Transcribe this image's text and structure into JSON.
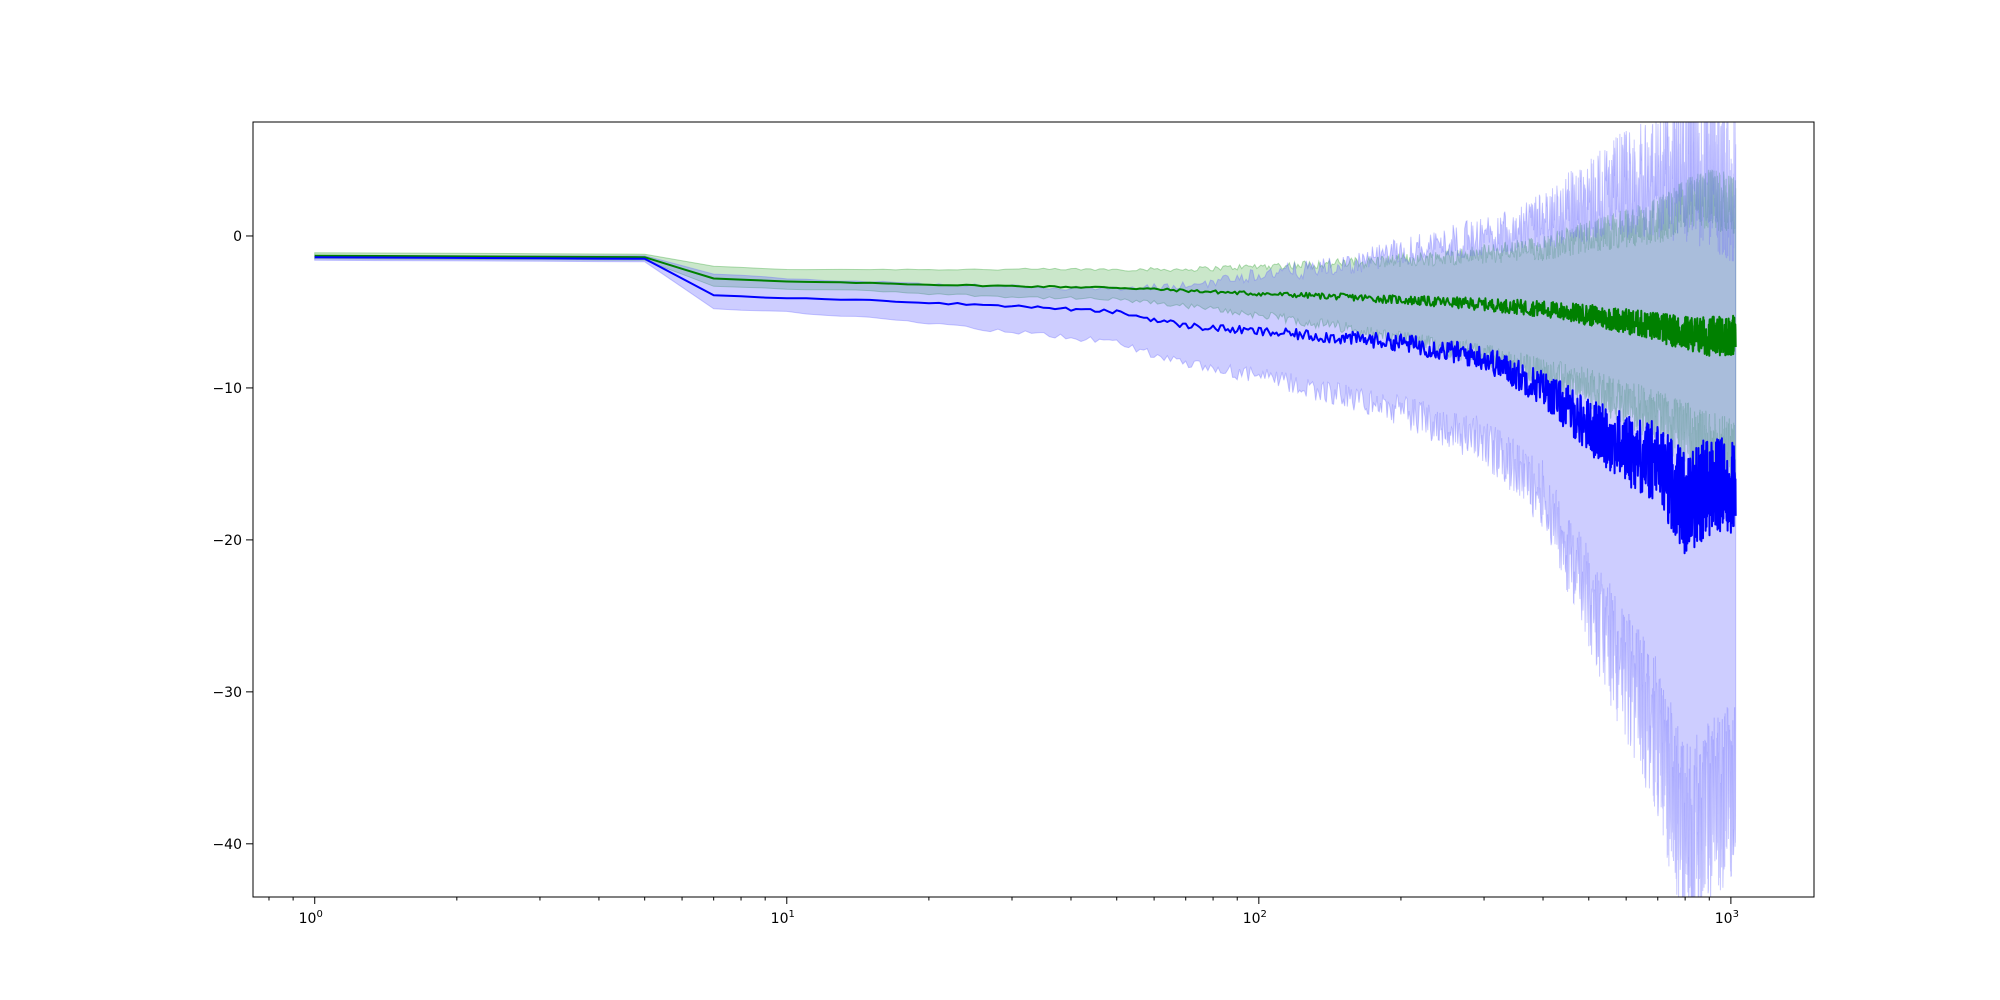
{
  "chart_data": {
    "type": "line",
    "title": "",
    "xlabel": "",
    "ylabel": "",
    "xscale": "log",
    "xlim": [
      0.74,
      1500
    ],
    "ylim": [
      -43.5,
      7.5
    ],
    "grid": false,
    "legend": "none",
    "x_ticks": [
      {
        "base": "10",
        "exp": "0",
        "value": 1
      },
      {
        "base": "10",
        "exp": "1",
        "value": 10
      },
      {
        "base": "10",
        "exp": "2",
        "value": 100
      },
      {
        "base": "10",
        "exp": "3",
        "value": 1000
      }
    ],
    "y_ticks": [
      {
        "label": "0",
        "value": 0
      },
      {
        "label": "−10",
        "value": -10
      },
      {
        "label": "−20",
        "value": -20
      },
      {
        "label": "−30",
        "value": -30
      },
      {
        "label": "−40",
        "value": -40
      }
    ],
    "x_points": [
      1,
      5,
      7,
      10,
      15,
      20,
      30,
      50,
      60,
      70,
      100,
      150,
      200,
      300,
      400,
      500,
      600,
      700,
      800,
      900,
      1024
    ],
    "series": [
      {
        "color": "#008000",
        "band_color": "#2ca02c",
        "mean": [
          -1.3,
          -1.4,
          -2.8,
          -3.0,
          -3.1,
          -3.2,
          -3.3,
          -3.4,
          -3.5,
          -3.6,
          -3.8,
          -4.0,
          -4.2,
          -4.5,
          -4.8,
          -5.2,
          -5.6,
          -6.0,
          -6.4,
          -6.6,
          -6.5
        ],
        "upper": [
          -1.1,
          -1.2,
          -2.0,
          -2.2,
          -2.2,
          -2.2,
          -2.2,
          -2.2,
          -2.2,
          -2.2,
          -2.0,
          -1.8,
          -1.6,
          -1.2,
          -0.8,
          0.0,
          0.5,
          1.0,
          2.0,
          2.5,
          2.0
        ],
        "lower": [
          -1.5,
          -1.6,
          -3.3,
          -3.5,
          -3.6,
          -3.8,
          -4.0,
          -4.2,
          -4.4,
          -4.6,
          -5.2,
          -6.0,
          -6.8,
          -7.8,
          -9.0,
          -10.0,
          -11.0,
          -12.0,
          -13.0,
          -14.0,
          -14.5
        ]
      },
      {
        "color": "#0000ff",
        "band_color": "#6666ff",
        "mean": [
          -1.4,
          -1.5,
          -3.9,
          -4.1,
          -4.2,
          -4.4,
          -4.6,
          -5.0,
          -5.5,
          -5.9,
          -6.3,
          -6.7,
          -7.0,
          -8.0,
          -10.0,
          -12.5,
          -14.0,
          -15.0,
          -17.5,
          -16.5,
          -16.5
        ],
        "upper": [
          -1.3,
          -1.3,
          -2.5,
          -2.8,
          -3.0,
          -3.2,
          -3.3,
          -3.5,
          -3.4,
          -3.3,
          -2.5,
          -2.0,
          -1.0,
          0.0,
          1.0,
          2.5,
          3.5,
          4.0,
          5.0,
          4.0,
          3.0
        ],
        "lower": [
          -1.6,
          -1.7,
          -4.8,
          -5.0,
          -5.4,
          -5.8,
          -6.3,
          -7.0,
          -7.8,
          -8.5,
          -9.2,
          -10.5,
          -11.5,
          -13.5,
          -17.0,
          -24.0,
          -29.0,
          -33.0,
          -40.0,
          -38.0,
          -36.0
        ]
      }
    ]
  }
}
